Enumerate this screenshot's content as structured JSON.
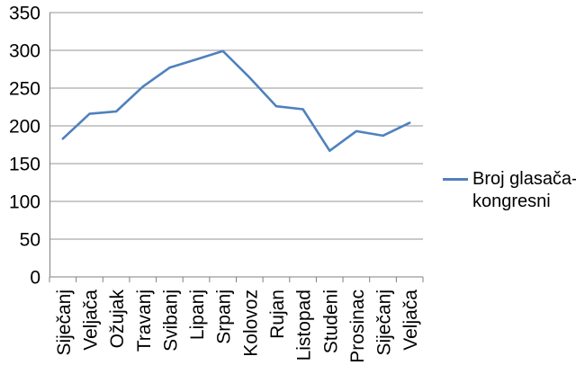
{
  "chart_data": {
    "type": "line",
    "title": "",
    "xlabel": "",
    "ylabel": "",
    "categories": [
      "Siječanj",
      "Veljača",
      "Ožujak",
      "Travanj",
      "Svibanj",
      "Lipanj",
      "Srpanj",
      "Kolovoz",
      "Rujan",
      "Listopad",
      "Studeni",
      "Prosinac",
      "Siječanj",
      "Veljača"
    ],
    "series": [
      {
        "name": "Broj glasača-kongresni",
        "values": [
          183,
          216,
          219,
          252,
          277,
          288,
          299,
          264,
          226,
          222,
          167,
          193,
          187,
          204
        ]
      }
    ],
    "ylim": [
      0,
      350
    ],
    "ytick_step": 50,
    "yticks": [
      0,
      50,
      100,
      150,
      200,
      250,
      300,
      350
    ],
    "grid": true,
    "legend_position": "right",
    "legend_lines": [
      "Broj glasača-",
      "kongresni"
    ]
  },
  "colors": {
    "line": "#4F81BD",
    "gridline": "#969696",
    "axis": "#808080",
    "text": "#000000",
    "background": "#FFFFFF"
  }
}
